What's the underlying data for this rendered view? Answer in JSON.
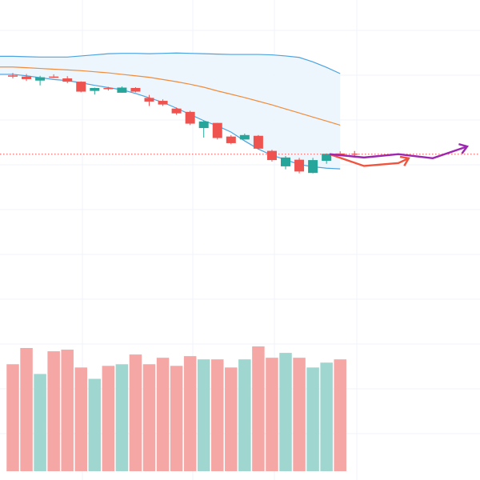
{
  "colors": {
    "background": "#ffffff",
    "grid": "#f0f3fa",
    "up": "#26a69a",
    "down": "#ef5350",
    "up_volume": "#9fd6d0",
    "down_volume": "#f4a7a5",
    "bollinger_band": "#4da3e0",
    "bollinger_fill": "#eaf4fc",
    "basis_line": "#f08c3c",
    "last_price_line": "#ef5350",
    "forecast_down": "#f0543f",
    "forecast_up": "#9c27b0"
  },
  "chart_data": [
    {
      "type": "candlestick",
      "title": "",
      "xlabel": "",
      "ylabel": "",
      "grid": true,
      "ylim": [
        0,
        100
      ],
      "candles": [
        {
          "o": 79.5,
          "h": 80.2,
          "l": 78.7,
          "c": 79.3
        },
        {
          "o": 79.2,
          "h": 79.9,
          "l": 78.0,
          "c": 78.5
        },
        {
          "o": 78.1,
          "h": 79.4,
          "l": 76.8,
          "c": 79.0
        },
        {
          "o": 79.2,
          "h": 79.8,
          "l": 78.8,
          "c": 79.0
        },
        {
          "o": 78.7,
          "h": 79.3,
          "l": 77.4,
          "c": 77.8
        },
        {
          "o": 77.8,
          "h": 77.9,
          "l": 74.9,
          "c": 75.1
        },
        {
          "o": 75.3,
          "h": 76.2,
          "l": 74.3,
          "c": 76.1
        },
        {
          "o": 76.1,
          "h": 76.4,
          "l": 75.4,
          "c": 75.8
        },
        {
          "o": 74.8,
          "h": 76.5,
          "l": 74.8,
          "c": 76.2
        },
        {
          "o": 76.1,
          "h": 76.3,
          "l": 74.9,
          "c": 75.1
        },
        {
          "o": 73.4,
          "h": 74.2,
          "l": 71.2,
          "c": 72.4
        },
        {
          "o": 72.6,
          "h": 73.0,
          "l": 71.2,
          "c": 71.6
        },
        {
          "o": 70.5,
          "h": 70.8,
          "l": 68.8,
          "c": 69.2
        },
        {
          "o": 69.6,
          "h": 69.9,
          "l": 66.0,
          "c": 66.4
        },
        {
          "o": 65.2,
          "h": 67.3,
          "l": 62.6,
          "c": 67.0
        },
        {
          "o": 66.6,
          "h": 66.6,
          "l": 62.1,
          "c": 62.5
        },
        {
          "o": 62.9,
          "h": 63.3,
          "l": 60.8,
          "c": 61.1
        },
        {
          "o": 62.1,
          "h": 63.7,
          "l": 62.1,
          "c": 63.3
        },
        {
          "o": 63.1,
          "h": 63.3,
          "l": 59.4,
          "c": 59.6
        },
        {
          "o": 59.0,
          "h": 59.3,
          "l": 56.1,
          "c": 56.5
        },
        {
          "o": 54.8,
          "h": 57.6,
          "l": 54.0,
          "c": 57.2
        },
        {
          "o": 56.6,
          "h": 57.1,
          "l": 52.9,
          "c": 53.4
        },
        {
          "o": 53.0,
          "h": 57.1,
          "l": 52.9,
          "c": 56.5
        },
        {
          "o": 56.3,
          "h": 58.3,
          "l": 55.5,
          "c": 58.2
        },
        {
          "o": 58.3,
          "h": 58.9,
          "l": 57.6,
          "c": 58.1
        }
      ],
      "volumes": [
        66,
        76,
        60,
        74,
        75,
        64,
        57,
        65,
        66,
        72,
        66,
        70,
        65,
        71,
        69,
        69,
        64,
        69,
        77,
        70,
        73,
        70,
        64,
        67,
        69
      ],
      "bollinger": {
        "upper": [
          84.7,
          84.6,
          84.5,
          84.5,
          84.5,
          84.8,
          85.1,
          85.4,
          85.5,
          85.5,
          85.4,
          85.5,
          85.6,
          85.5,
          85.4,
          85.3,
          85.2,
          85.2,
          85.2,
          85.1,
          84.8,
          84.4,
          83.2,
          81.7,
          80.0
        ],
        "basis": [
          81.8,
          81.6,
          81.4,
          81.2,
          81.0,
          80.8,
          80.5,
          80.2,
          79.8,
          79.4,
          79.0,
          78.4,
          77.8,
          77.1,
          76.3,
          75.3,
          74.4,
          73.5,
          72.5,
          71.5,
          70.4,
          69.3,
          68.2,
          67.1,
          66.0
        ],
        "lower": [
          79.8,
          79.4,
          78.9,
          78.4,
          78.1,
          77.5,
          76.8,
          76.2,
          75.6,
          74.6,
          73.4,
          72.2,
          70.6,
          68.9,
          67.2,
          65.8,
          64.1,
          61.7,
          59.5,
          57.8,
          56.6,
          55.3,
          54.7,
          54.3,
          54.1
        ]
      },
      "last_price": 58.1,
      "forecast_paths": [
        {
          "color_key": "forecast_down",
          "points": [
            [
              25,
              58.1
            ],
            [
              26,
              54.9
            ],
            [
              27,
              55.7
            ],
            [
              27.3,
              57.0
            ]
          ]
        },
        {
          "color_key": "forecast_up",
          "points": [
            [
              25,
              58.1
            ],
            [
              26,
              57.2
            ],
            [
              27,
              58.1
            ],
            [
              28,
              57.0
            ],
            [
              29,
              60.2
            ]
          ]
        }
      ]
    }
  ]
}
